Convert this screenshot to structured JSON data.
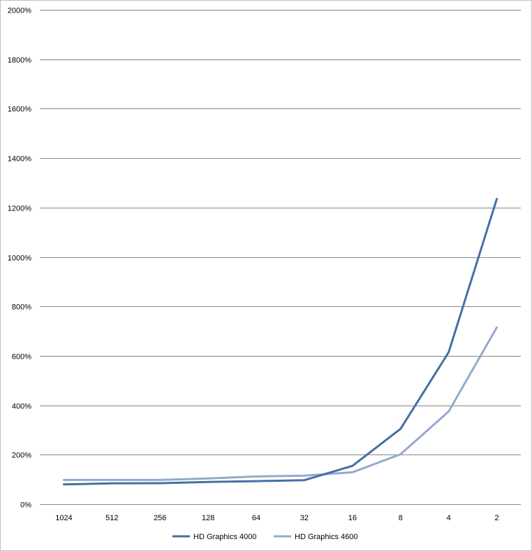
{
  "chart_data": {
    "type": "line",
    "title": "",
    "xlabel": "",
    "ylabel": "",
    "categories": [
      "1024",
      "512",
      "256",
      "128",
      "64",
      "32",
      "16",
      "8",
      "4",
      "2"
    ],
    "ylim": [
      0,
      2000
    ],
    "yticks": [
      0,
      200,
      400,
      600,
      800,
      1000,
      1200,
      1400,
      1600,
      1800,
      2000
    ],
    "ytick_labels": [
      "0%",
      "200%",
      "400%",
      "600%",
      "800%",
      "1000%",
      "1200%",
      "1400%",
      "1600%",
      "1800%",
      "2000%"
    ],
    "grid": "horizontal",
    "legend": "bottom",
    "series": [
      {
        "name": "HD Graphics 4000",
        "color": "#4470a4",
        "values": [
          80,
          84,
          85,
          90,
          93,
          97,
          155,
          305,
          615,
          1235
        ]
      },
      {
        "name": "HD Graphics 4600",
        "color": "#94aacc",
        "values": [
          98,
          98,
          98,
          104,
          112,
          115,
          129,
          202,
          375,
          715
        ]
      }
    ]
  }
}
